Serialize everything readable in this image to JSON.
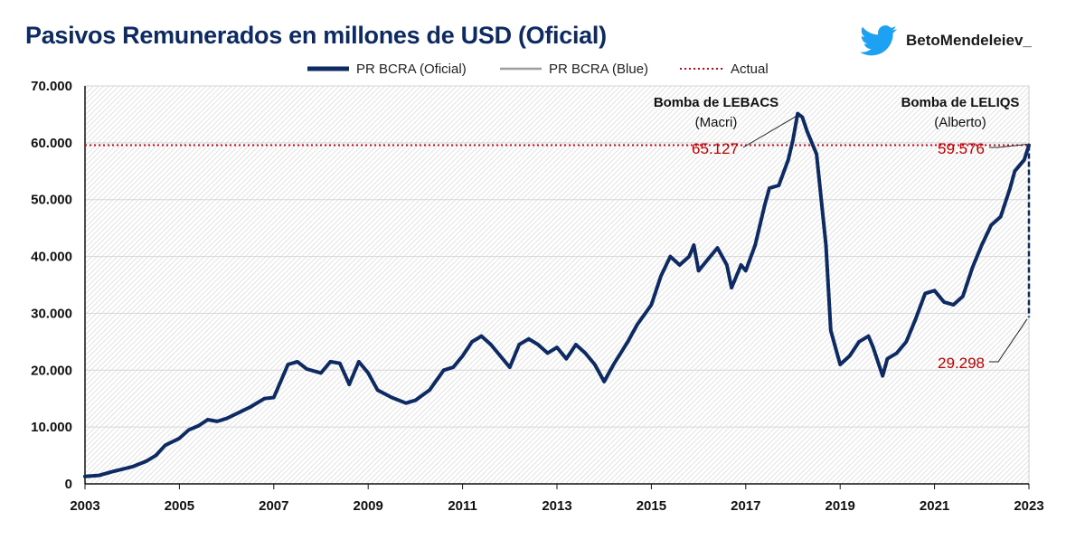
{
  "header": {
    "title": "Pasivos Remunerados en millones de USD (Oficial)",
    "brand": "BetoMendeleiev_",
    "brand_icon": "twitter-bird-icon"
  },
  "colors": {
    "oficial": "#0e2a63",
    "blue": "#9e9e9e",
    "actual": "#d0021b",
    "annotation_value": "#c00000"
  },
  "chart_data": {
    "type": "line",
    "title": "Pasivos Remunerados en millones de USD (Oficial)",
    "xlabel": "",
    "ylabel": "",
    "xlim": [
      2003,
      2023
    ],
    "ylim": [
      0,
      70000
    ],
    "grid": true,
    "legend_position": "top",
    "x_ticks": [
      "2003",
      "2005",
      "2007",
      "2009",
      "2011",
      "2013",
      "2015",
      "2017",
      "2019",
      "2021",
      "2023"
    ],
    "y_ticks": [
      "0",
      "10.000",
      "20.000",
      "30.000",
      "40.000",
      "50.000",
      "60.000",
      "70.000"
    ],
    "legend": [
      {
        "key": "oficial",
        "label": "PR BCRA (Oficial)",
        "style": "solid-thick"
      },
      {
        "key": "blue",
        "label": "PR BCRA (Blue)",
        "style": "solid-thin"
      },
      {
        "key": "actual",
        "label": "Actual",
        "style": "dotted"
      }
    ],
    "reference_line": {
      "name": "Actual",
      "value": 59576
    },
    "series": [
      {
        "name": "PR BCRA (Oficial)",
        "x": [
          2003.0,
          2003.3,
          2003.6,
          2004.0,
          2004.3,
          2004.5,
          2004.7,
          2005.0,
          2005.2,
          2005.4,
          2005.6,
          2005.8,
          2006.0,
          2006.2,
          2006.5,
          2006.8,
          2007.0,
          2007.3,
          2007.5,
          2007.7,
          2008.0,
          2008.2,
          2008.4,
          2008.6,
          2008.8,
          2009.0,
          2009.2,
          2009.5,
          2009.8,
          2010.0,
          2010.3,
          2010.6,
          2010.8,
          2011.0,
          2011.2,
          2011.4,
          2011.6,
          2011.8,
          2012.0,
          2012.2,
          2012.4,
          2012.6,
          2012.8,
          2013.0,
          2013.2,
          2013.4,
          2013.6,
          2013.8,
          2014.0,
          2014.2,
          2014.5,
          2014.7,
          2015.0,
          2015.2,
          2015.4,
          2015.6,
          2015.8,
          2015.9,
          2016.0,
          2016.2,
          2016.4,
          2016.6,
          2016.7,
          2016.9,
          2017.0,
          2017.2,
          2017.4,
          2017.5,
          2017.7,
          2017.9,
          2018.0,
          2018.1,
          2018.2,
          2018.3,
          2018.5,
          2018.7,
          2018.8,
          2019.0,
          2019.2,
          2019.4,
          2019.6,
          2019.7,
          2019.9,
          2020.0,
          2020.2,
          2020.4,
          2020.6,
          2020.8,
          2021.0,
          2021.2,
          2021.4,
          2021.6,
          2021.8,
          2022.0,
          2022.2,
          2022.4,
          2022.6,
          2022.7,
          2022.9,
          2023.0
        ],
        "values": [
          1300,
          1500,
          2200,
          3000,
          4000,
          5000,
          6800,
          8000,
          9500,
          10200,
          11300,
          11000,
          11500,
          12300,
          13500,
          15000,
          15200,
          21000,
          21500,
          20200,
          19500,
          21500,
          21200,
          17500,
          21500,
          19500,
          16500,
          15200,
          14200,
          14700,
          16500,
          20000,
          20500,
          22500,
          25000,
          26000,
          24500,
          22500,
          20500,
          24500,
          25500,
          24500,
          23000,
          24000,
          22000,
          24500,
          23000,
          21000,
          18000,
          21000,
          25000,
          28000,
          31500,
          36500,
          40000,
          38500,
          40000,
          42000,
          37500,
          39500,
          41500,
          38500,
          34500,
          38500,
          37500,
          42000,
          49000,
          52000,
          52500,
          57000,
          60500,
          65127,
          64500,
          62000,
          58000,
          42000,
          27000,
          21000,
          22500,
          25000,
          26000,
          24000,
          19000,
          22000,
          23000,
          25000,
          29000,
          33500,
          34000,
          32000,
          31500,
          33000,
          38000,
          42000,
          45500,
          47000,
          52000,
          55000,
          57000,
          59576
        ]
      },
      {
        "name": "PR BCRA (Blue)",
        "x": [
          2023.0
        ],
        "values": [
          29298
        ]
      }
    ],
    "annotations": [
      {
        "title": "Bomba de LEBACS",
        "subtitle": "(Macri)",
        "value_label": "65.127",
        "x": 2018.1,
        "y": 65127
      },
      {
        "title": "Bomba de LELIQS",
        "subtitle": "(Alberto)",
        "value_label": "59.576",
        "x": 2023.0,
        "y": 59576
      },
      {
        "title": "",
        "subtitle": "",
        "value_label": "29.298",
        "x": 2023.0,
        "y": 29298
      }
    ]
  }
}
